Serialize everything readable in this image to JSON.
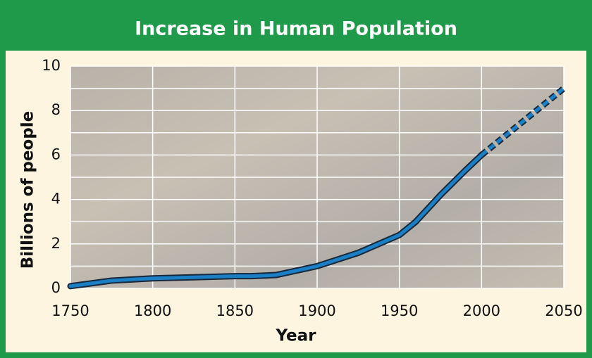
{
  "chart_data": {
    "type": "line",
    "title": "Increase in Human Population",
    "x_label": "Year",
    "y_label": "Billions of people",
    "x": [
      1750,
      1775,
      1800,
      1825,
      1850,
      1860,
      1875,
      1900,
      1925,
      1950,
      1960,
      1975,
      1990,
      2000,
      2025,
      2050
    ],
    "series": [
      {
        "color": "#1b7fc6",
        "outline": "#17283a",
        "dashed": false,
        "values": [
          0.1,
          0.35,
          0.45,
          0.5,
          0.55,
          0.55,
          0.6,
          1.0,
          1.6,
          2.4,
          3.0,
          4.2,
          5.3,
          6.0,
          null,
          null
        ]
      },
      {
        "color": "#1b7fc6",
        "outline": "#17283a",
        "dashed": true,
        "values": [
          null,
          null,
          null,
          null,
          null,
          null,
          null,
          null,
          null,
          null,
          null,
          null,
          null,
          6.0,
          7.5,
          9.0
        ]
      }
    ],
    "xlim": [
      1750,
      2050
    ],
    "xticks": [
      1750,
      1800,
      1850,
      1900,
      1950,
      2000,
      2050
    ],
    "ylim": [
      0,
      10
    ],
    "yticks": [
      0,
      2,
      4,
      6,
      8,
      10
    ],
    "ygrid": [
      0,
      1,
      2,
      3,
      4,
      5,
      6,
      7,
      8,
      9,
      10
    ],
    "grid": true
  }
}
